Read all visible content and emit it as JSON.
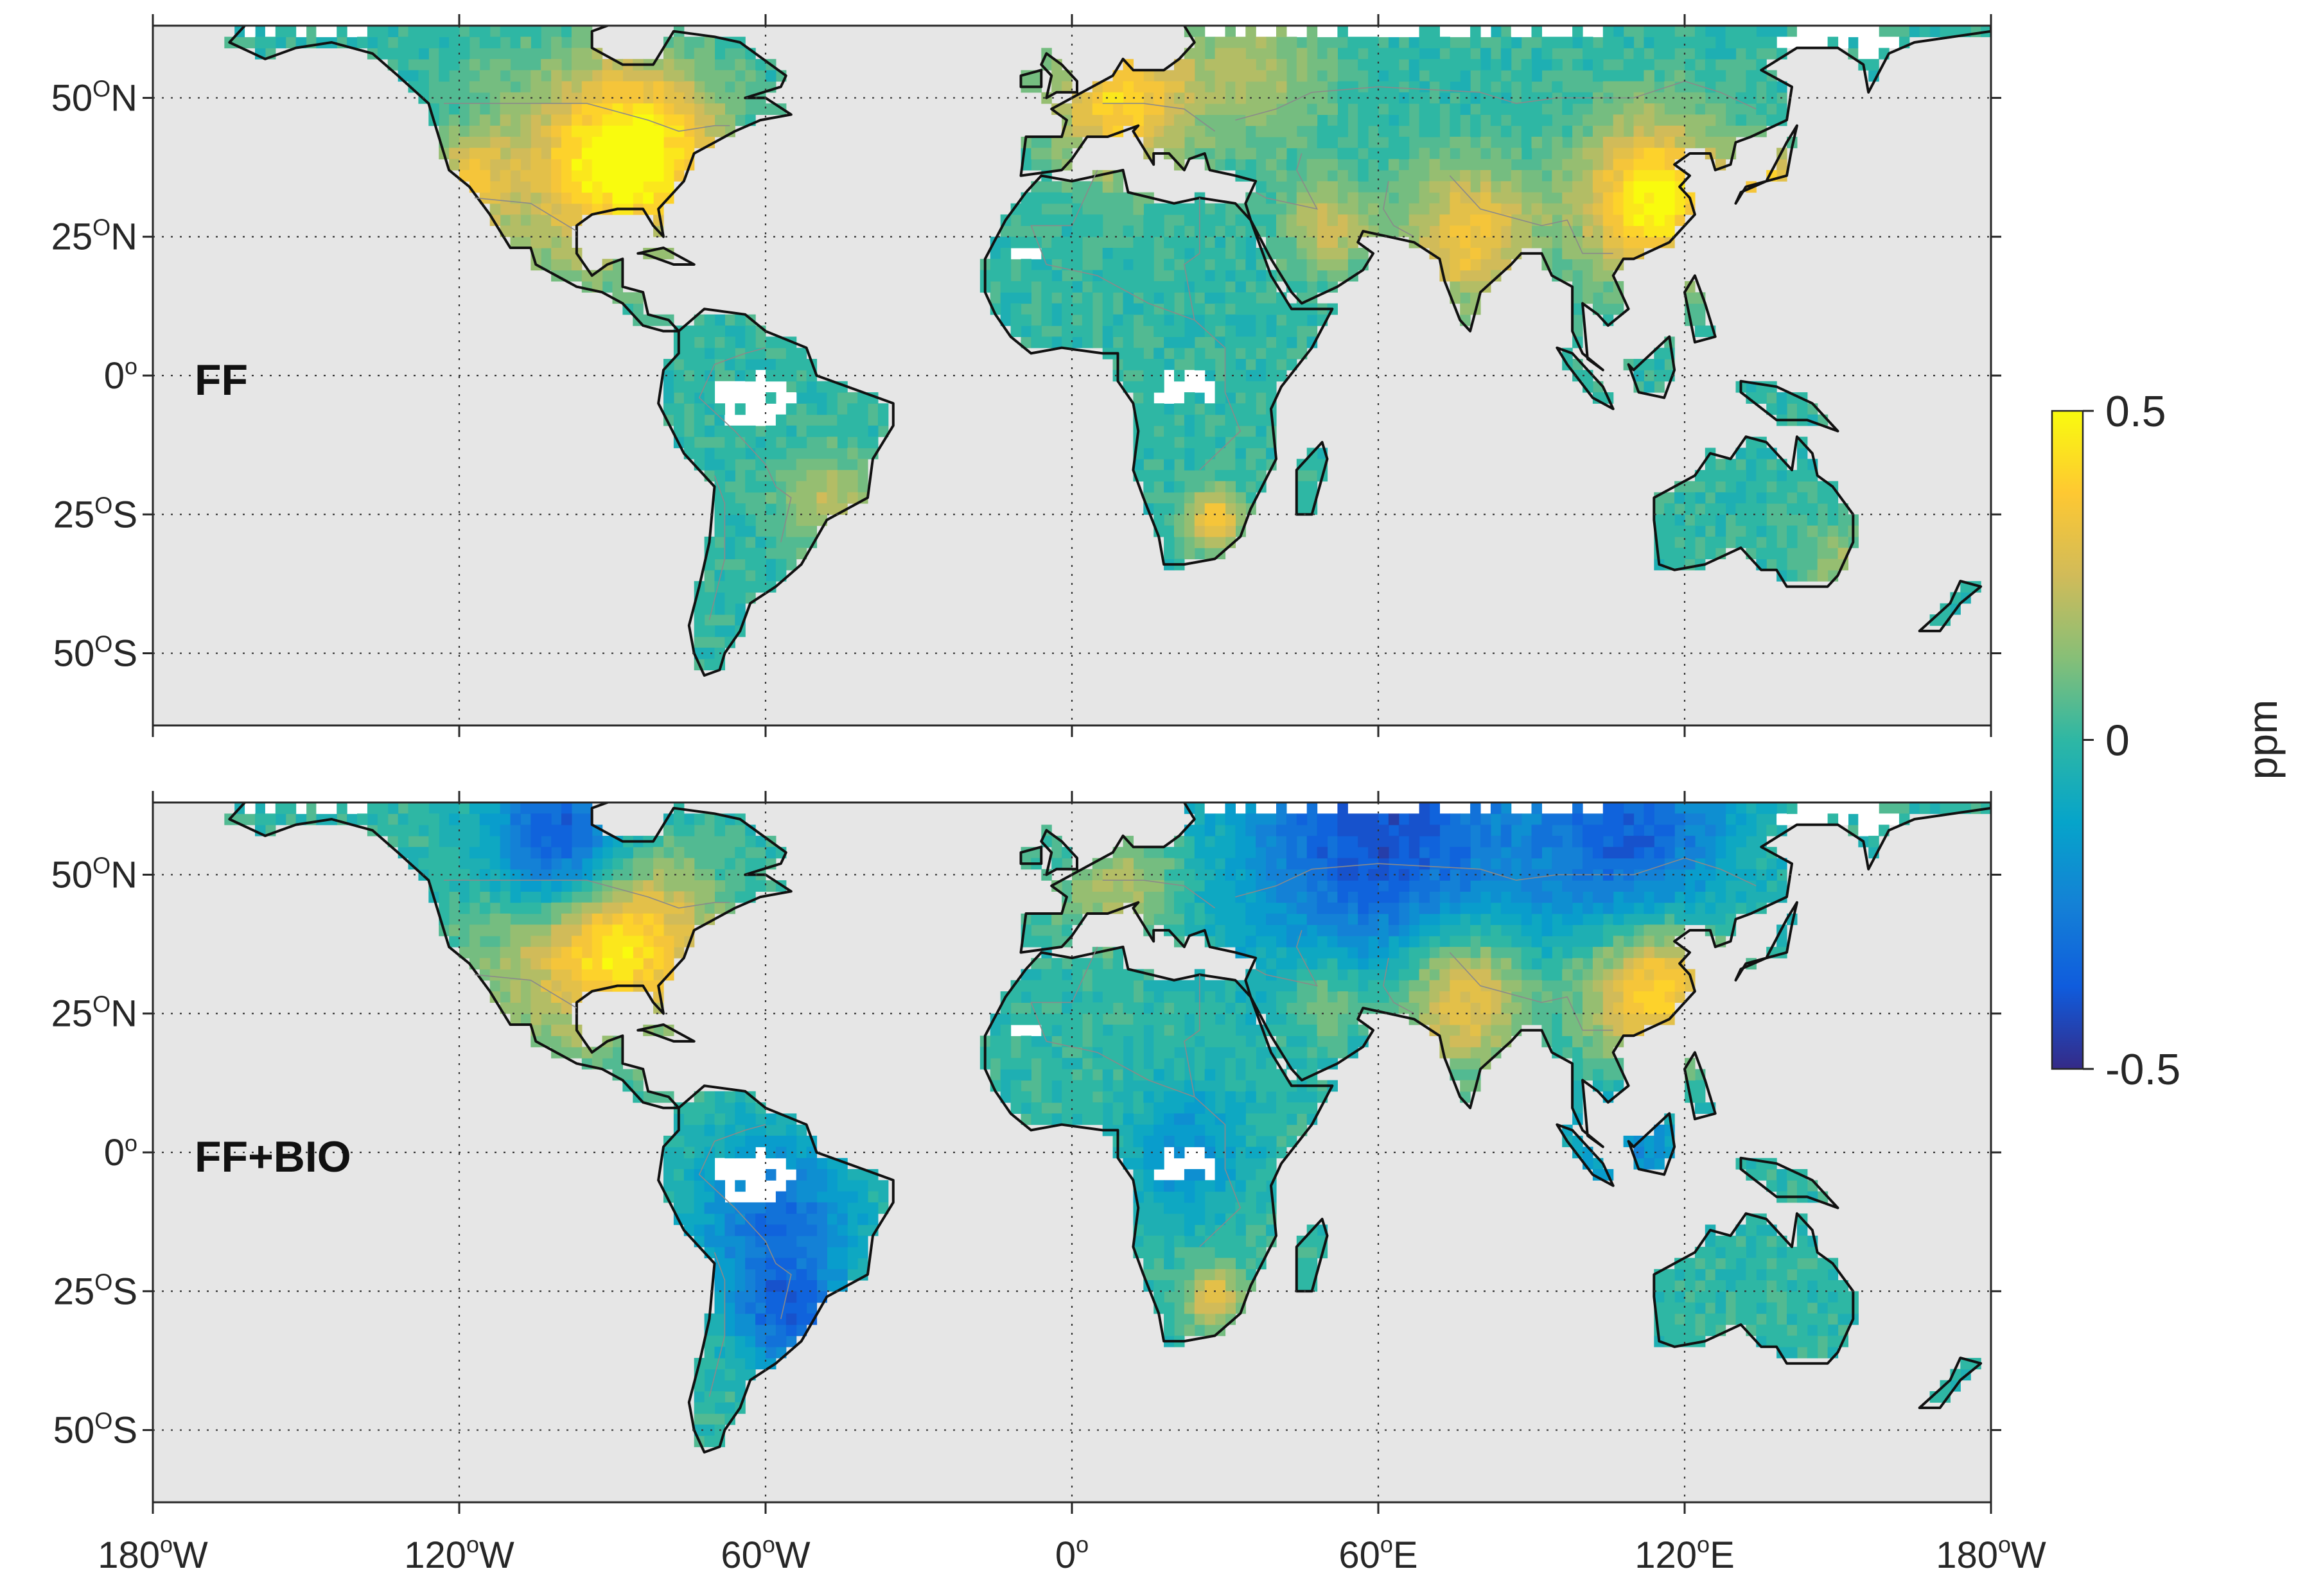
{
  "figure": {
    "panels": [
      {
        "id": "ff",
        "label": "FF",
        "field": "FF",
        "hotspots": [
          {
            "lon": -84,
            "lat": 40,
            "value": 0.45,
            "radius_deg": 11
          },
          {
            "lon": -100,
            "lat": 36,
            "value": 0.22,
            "radius_deg": 14
          },
          {
            "lon": -118,
            "lat": 35,
            "value": 0.25,
            "radius_deg": 5
          },
          {
            "lon": 10,
            "lat": 50,
            "value": 0.4,
            "radius_deg": 10
          },
          {
            "lon": 37,
            "lat": 55,
            "value": 0.18,
            "radius_deg": 9
          },
          {
            "lon": 78,
            "lat": 25,
            "value": 0.35,
            "radius_deg": 9
          },
          {
            "lon": 114,
            "lat": 32,
            "value": 0.5,
            "radius_deg": 10
          },
          {
            "lon": 136,
            "lat": 36,
            "value": 0.4,
            "radius_deg": 4
          },
          {
            "lon": 28,
            "lat": -26,
            "value": 0.35,
            "radius_deg": 4
          },
          {
            "lon": 50,
            "lat": 27,
            "value": 0.25,
            "radius_deg": 6
          },
          {
            "lon": -48,
            "lat": -22,
            "value": 0.2,
            "radius_deg": 6
          },
          {
            "lon": 150,
            "lat": -33,
            "value": 0.15,
            "radius_deg": 5
          }
        ]
      },
      {
        "id": "ffbio",
        "label": "FF+BIO",
        "field": "FF+BIO",
        "hotspots": [
          {
            "lon": -86,
            "lat": 38,
            "value": 0.4,
            "radius_deg": 11
          },
          {
            "lon": -102,
            "lat": 36,
            "value": 0.2,
            "radius_deg": 12
          },
          {
            "lon": 10,
            "lat": 48,
            "value": 0.2,
            "radius_deg": 8
          },
          {
            "lon": 76,
            "lat": 28,
            "value": 0.4,
            "radius_deg": 9
          },
          {
            "lon": 114,
            "lat": 30,
            "value": 0.45,
            "radius_deg": 10
          },
          {
            "lon": 28,
            "lat": -26,
            "value": 0.3,
            "radius_deg": 4
          },
          {
            "lon": 50,
            "lat": 28,
            "value": 0.2,
            "radius_deg": 6
          },
          {
            "lon": -100,
            "lat": 55,
            "value": -0.45,
            "radius_deg": 10
          },
          {
            "lon": 60,
            "lat": 58,
            "value": -0.4,
            "radius_deg": 20
          },
          {
            "lon": 110,
            "lat": 55,
            "value": -0.35,
            "radius_deg": 14
          },
          {
            "lon": -58,
            "lat": -12,
            "value": -0.3,
            "radius_deg": 11
          },
          {
            "lon": -55,
            "lat": -30,
            "value": -0.3,
            "radius_deg": 7
          },
          {
            "lon": 22,
            "lat": 0,
            "value": -0.2,
            "radius_deg": 8
          },
          {
            "lon": 110,
            "lat": 0,
            "value": -0.2,
            "radius_deg": 10
          }
        ]
      }
    ],
    "map_extent": {
      "lon": [
        -180,
        180
      ],
      "lat": [
        -63,
        63
      ]
    },
    "grid": true,
    "x_ticks": [
      {
        "lon": -180,
        "num": "180",
        "sup": "o",
        "hem": "W"
      },
      {
        "lon": -120,
        "num": "120",
        "sup": "o",
        "hem": "W"
      },
      {
        "lon": -60,
        "num": "60",
        "sup": "o",
        "hem": "W"
      },
      {
        "lon": 0,
        "num": "0",
        "sup": "o",
        "hem": ""
      },
      {
        "lon": 60,
        "num": "60",
        "sup": "o",
        "hem": "E"
      },
      {
        "lon": 120,
        "num": "120",
        "sup": "o",
        "hem": "E"
      },
      {
        "lon": 180,
        "num": "180",
        "sup": "o",
        "hem": "W"
      }
    ],
    "y_ticks": [
      {
        "lat": 50,
        "num": "50",
        "sup": "O",
        "hem": "N"
      },
      {
        "lat": 25,
        "num": "25",
        "sup": "O",
        "hem": "N"
      },
      {
        "lat": 0,
        "num": "0",
        "sup": "o",
        "hem": ""
      },
      {
        "lat": -25,
        "num": "25",
        "sup": "O",
        "hem": "S"
      },
      {
        "lat": -50,
        "num": "50",
        "sup": "O",
        "hem": "S"
      }
    ],
    "colorbar": {
      "min": -0.5,
      "max": 0.5,
      "labels": [
        {
          "value": 0.5,
          "text": "0.5"
        },
        {
          "value": 0,
          "text": "0"
        },
        {
          "value": -0.5,
          "text": "-0.5"
        }
      ],
      "unit": "ppm",
      "colormap": [
        "#352a87",
        "#0f5cdd",
        "#1481d6",
        "#06a4ca",
        "#2eb7a4",
        "#87bf77",
        "#d1bb59",
        "#fec832",
        "#f9fb0e"
      ]
    },
    "colors": {
      "ocean": "#e6e6e6",
      "coast": "#111111",
      "border": "#8a8a8a",
      "no_data": "#ffffff",
      "background": "#ffffff"
    }
  }
}
